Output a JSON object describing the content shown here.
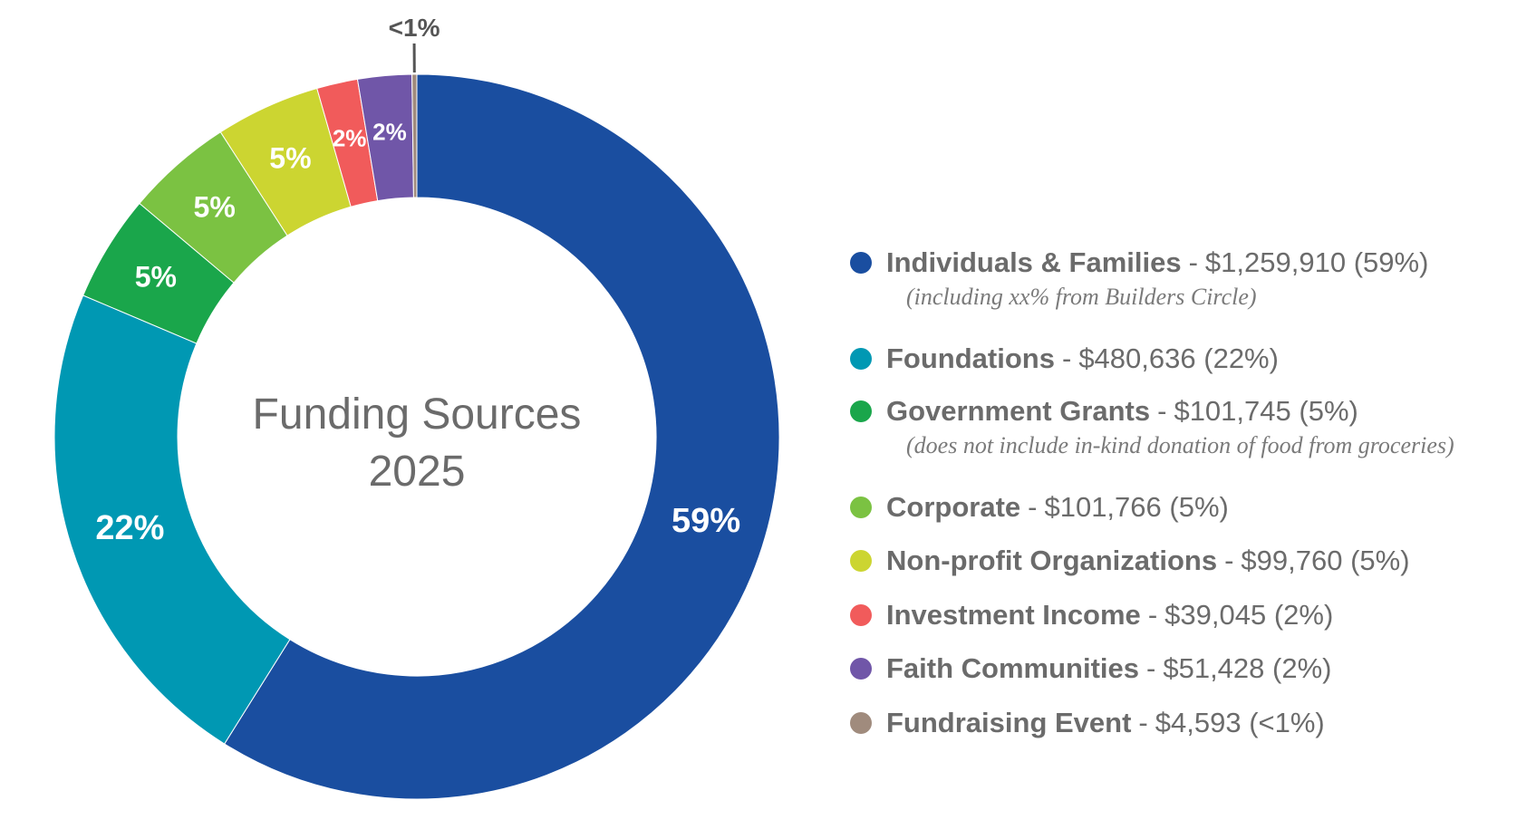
{
  "chart_data": {
    "type": "pie",
    "title": "Funding Sources",
    "subtitle": "2025",
    "donut": true,
    "legend_position": "right",
    "slices": [
      {
        "name": "Individuals & Families",
        "amount": "$1,259,910",
        "percent_label": "59%",
        "legend_percent": "(59%)",
        "value": 1259910,
        "color": "#1a4ea0",
        "note": "(including xx% from Builders Circle)"
      },
      {
        "name": "Foundations",
        "amount": "$480,636",
        "percent_label": "22%",
        "legend_percent": "(22%)",
        "value": 480636,
        "color": "#0098b3",
        "note": ""
      },
      {
        "name": "Government Grants",
        "amount": "$101,745",
        "percent_label": "5%",
        "legend_percent": "(5%)",
        "value": 101745,
        "color": "#1aa64b",
        "note": "(does not include in-kind donation of food from groceries)"
      },
      {
        "name": "Corporate",
        "amount": "$101,766",
        "percent_label": "5%",
        "legend_percent": "(5%)",
        "value": 101766,
        "color": "#7bc242",
        "note": ""
      },
      {
        "name": "Non-profit Organizations",
        "amount": "$99,760",
        "percent_label": "5%",
        "legend_percent": "(5%)",
        "value": 99760,
        "color": "#ccd531",
        "note": ""
      },
      {
        "name": "Investment Income",
        "amount": "$39,045",
        "percent_label": "2%",
        "legend_percent": "(2%)",
        "value": 39045,
        "color": "#f15b5b",
        "note": ""
      },
      {
        "name": "Faith Communities",
        "amount": "$51,428",
        "percent_label": "2%",
        "legend_percent": "(2%)",
        "value": 51428,
        "color": "#7056a8",
        "note": ""
      },
      {
        "name": "Fundraising Event",
        "amount": "$4,593",
        "percent_label": "<1%",
        "legend_percent": "(<1%)",
        "value": 4593,
        "color": "#a08b7d",
        "note": ""
      }
    ],
    "label_color": "#ffffff",
    "callout_color": "#555555",
    "center_text_color": "#6b6b6b"
  }
}
